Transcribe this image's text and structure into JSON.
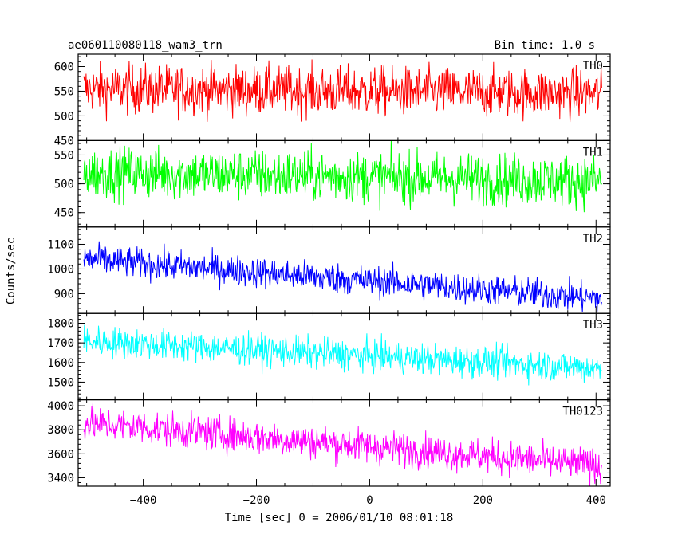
{
  "header": {
    "title": "ae060110080118_wam3_trn",
    "bin_time": "Bin time: 1.0 s"
  },
  "axes": {
    "xlabel": "Time [sec] 0 = 2006/01/10 08:01:18",
    "ylabel": "Counts/sec"
  },
  "chart_data": {
    "type": "line",
    "x": {
      "range": [
        -515,
        425
      ],
      "step": 1.0,
      "start": -505,
      "end": 410,
      "ticks": [
        -400,
        -200,
        0,
        200,
        400
      ]
    },
    "series": [
      {
        "name": "TH0",
        "color": "#ff0000",
        "ylim": [
          450,
          625
        ],
        "yticks": [
          450,
          500,
          550,
          600
        ],
        "start_level": 555,
        "end_level": 545,
        "noise": 28
      },
      {
        "name": "TH1",
        "color": "#00ff00",
        "ylim": [
          425,
          575
        ],
        "yticks": [
          450,
          500,
          550
        ],
        "start_level": 520,
        "end_level": 505,
        "noise": 25
      },
      {
        "name": "TH2",
        "color": "#0000ff",
        "ylim": [
          820,
          1170
        ],
        "yticks": [
          900,
          1000,
          1100
        ],
        "start_level": 1040,
        "end_level": 880,
        "noise": 35
      },
      {
        "name": "TH3",
        "color": "#00ffff",
        "ylim": [
          1410,
          1850
        ],
        "yticks": [
          1500,
          1600,
          1700,
          1800
        ],
        "start_level": 1710,
        "end_level": 1570,
        "noise": 45
      },
      {
        "name": "TH0123",
        "color": "#ff00ff",
        "ylim": [
          3330,
          4050
        ],
        "yticks": [
          3400,
          3600,
          3800,
          4000
        ],
        "start_level": 3860,
        "end_level": 3500,
        "noise": 80
      }
    ]
  }
}
